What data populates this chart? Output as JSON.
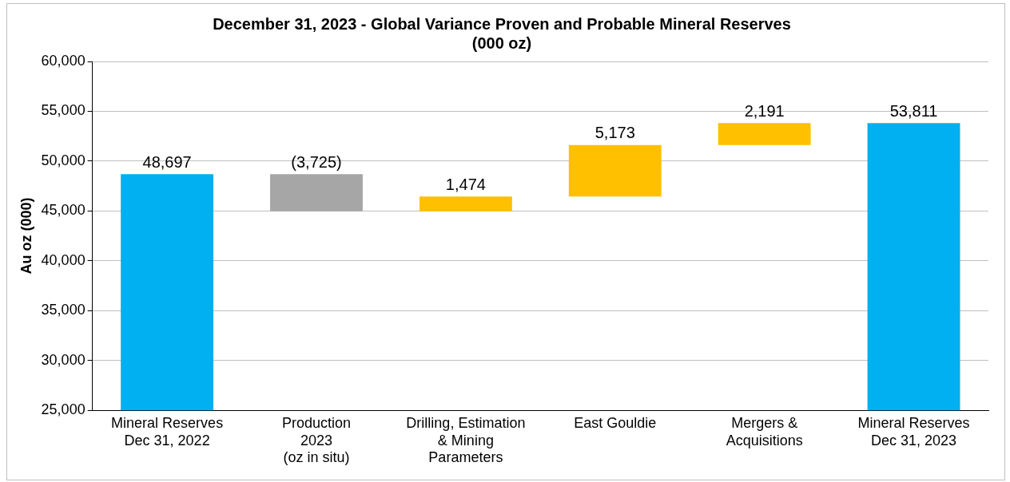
{
  "chart_data": {
    "type": "bar",
    "title": "December 31, 2023 - Global Variance Proven and Probable Mineral Reserves\n(000 oz)",
    "ylabel": "Au oz (000)",
    "categories": [
      "Mineral Reserves\nDec 31, 2022",
      "Production\n2023\n(oz in situ)",
      "Drilling, Estimation\n& Mining\nParameters",
      "East Gouldie",
      "Mergers &\nAcquisitions",
      "Mineral Reserves\nDec 31, 2023"
    ],
    "values": [
      48697,
      -3725,
      1474,
      5173,
      2191,
      53811
    ],
    "base": [
      null,
      48697,
      44972,
      46446,
      51619,
      null
    ],
    "colors": [
      "#00b0f0",
      "#a6a6a6",
      "#ffc000",
      "#ffc000",
      "#ffc000",
      "#00b0f0"
    ],
    "value_labels": [
      "48,697",
      "(3,725)",
      "1,474",
      "5,173",
      "2,191",
      "53,811"
    ],
    "ylim": [
      25000,
      60000
    ],
    "yticks": [
      {
        "value": 25000,
        "label": "25,000"
      },
      {
        "value": 30000,
        "label": "30,000"
      },
      {
        "value": 35000,
        "label": "35,000"
      },
      {
        "value": 40000,
        "label": "40,000"
      },
      {
        "value": 45000,
        "label": "45,000"
      },
      {
        "value": 50000,
        "label": "50,000"
      },
      {
        "value": 55000,
        "label": "55,000"
      },
      {
        "value": 60000,
        "label": "60,000"
      }
    ],
    "grid": "y"
  }
}
